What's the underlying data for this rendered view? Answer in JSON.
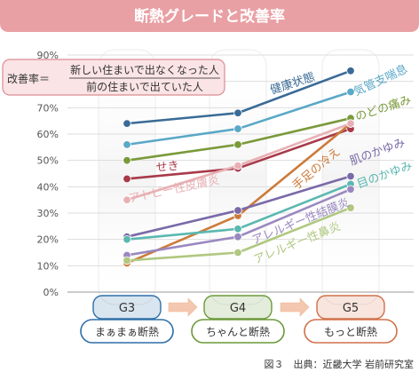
{
  "title": "断熱グレードと改善率",
  "formula": {
    "lhs": "改善率＝",
    "numerator": "新しい住まいで出なくなった人",
    "denominator": "前の住まいで出ていた人"
  },
  "caption": "図３　出典：近畿大学 岩前研究室",
  "colors": {
    "title_bar": "#e8a0a4",
    "formula_box_fill": "#fbe4e6",
    "formula_box_stroke": "#d98c92",
    "grid": "#dddddd"
  },
  "chart_data": {
    "type": "line",
    "title": "断熱グレードと改善率",
    "xlabel": "",
    "ylabel": "",
    "ylim": [
      0,
      90
    ],
    "y_ticks": [
      "0%",
      "10%",
      "20%",
      "30%",
      "40%",
      "50%",
      "60%",
      "70%",
      "80%",
      "90%"
    ],
    "grid": true,
    "categories": [
      "G3",
      "G4",
      "G5"
    ],
    "category_descriptions": [
      "まぁまぁ断熱",
      "ちゃんと断熱",
      "もっと断熱"
    ],
    "category_colors": [
      "#2f6fa8",
      "#6a9a3a",
      "#d0704a"
    ],
    "series": [
      {
        "name": "健康状態",
        "values": [
          64,
          68,
          84
        ],
        "color": "#3a6b96"
      },
      {
        "name": "気管支喘息",
        "values": [
          56,
          62,
          76
        ],
        "color": "#5aa8c8"
      },
      {
        "name": "のどの痛み",
        "values": [
          50,
          56,
          66
        ],
        "color": "#7a9a3a"
      },
      {
        "name": "せき",
        "values": [
          43,
          47,
          62
        ],
        "color": "#a83a4a"
      },
      {
        "name": "手足の冷え",
        "values": [
          11,
          29,
          64
        ],
        "color": "#cc7a3a"
      },
      {
        "name": "アトピー性皮膚炎",
        "values": [
          35,
          48,
          64
        ],
        "color": "#e8b0b4"
      },
      {
        "name": "肌のかゆみ",
        "values": [
          21,
          31,
          44
        ],
        "color": "#7a6aa8"
      },
      {
        "name": "目のかゆみ",
        "values": [
          20,
          24,
          41
        ],
        "color": "#5ab8b0"
      },
      {
        "name": "アレルギー性結膜炎",
        "values": [
          14,
          21,
          39
        ],
        "color": "#9a88c0"
      },
      {
        "name": "アレルギー性鼻炎",
        "values": [
          12,
          15,
          32
        ],
        "color": "#b0c880"
      }
    ]
  }
}
